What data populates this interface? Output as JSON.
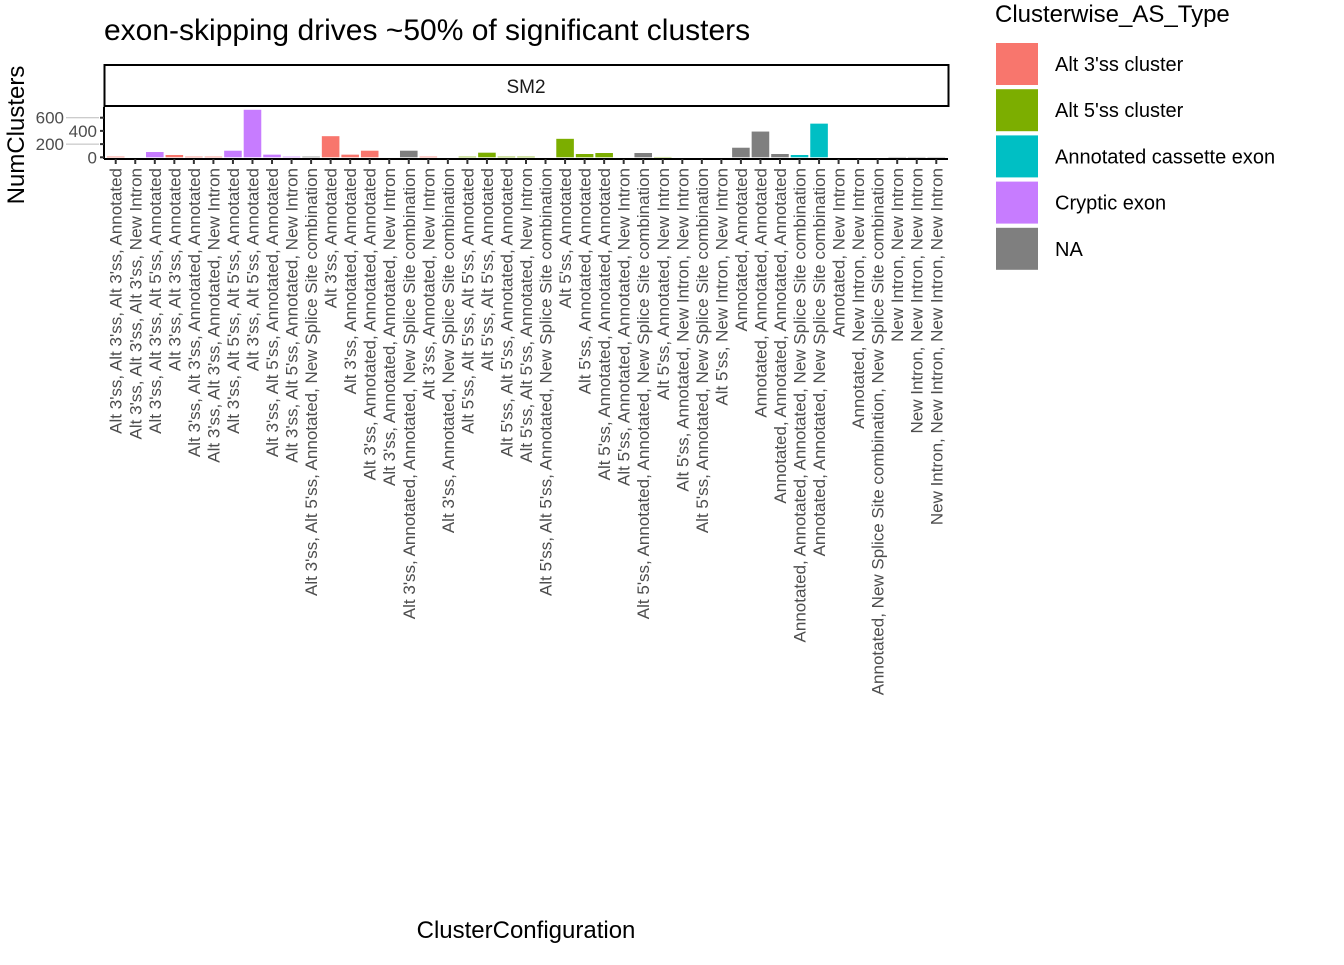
{
  "chart_data": {
    "type": "bar",
    "title": "exon-skipping drives ~50% of significant clusters",
    "facet": "SM2",
    "xlabel": "ClusterConfiguration",
    "ylabel": "NumClusters",
    "ylim": [
      0,
      760
    ],
    "yticks": [
      0,
      200,
      400,
      600
    ],
    "grid": false,
    "legend": {
      "title": "Clusterwise_AS_Type",
      "position": "right",
      "entries": [
        {
          "label": "Alt 3'ss cluster",
          "color": "#F8766D"
        },
        {
          "label": "Alt 5'ss cluster",
          "color": "#7CAE00"
        },
        {
          "label": "Annotated cassette exon",
          "color": "#00BFC4"
        },
        {
          "label": "Cryptic exon",
          "color": "#C77CFF"
        },
        {
          "label": "NA",
          "color": "#7F7F7F"
        }
      ]
    },
    "categories": [
      "Alt 3'ss, Alt 3'ss, Alt 3'ss, Annotated",
      "Alt 3'ss, Alt 3'ss, Alt 3'ss, New Intron",
      "Alt 3'ss, Alt 3'ss, Alt 5'ss, Annotated",
      "Alt 3'ss, Alt 3'ss, Annotated",
      "Alt 3'ss, Alt 3'ss, Annotated, Annotated",
      "Alt 3'ss, Alt 3'ss, Annotated, New Intron",
      "Alt 3'ss, Alt 5'ss, Alt 5'ss, Annotated",
      "Alt 3'ss, Alt 5'ss, Annotated",
      "Alt 3'ss, Alt 5'ss, Annotated, Annotated",
      "Alt 3'ss, Alt 5'ss, Annotated, New Intron",
      "Alt 3'ss, Alt 5'ss, Annotated, New Splice Site combination",
      "Alt 3'ss, Annotated",
      "Alt 3'ss, Annotated, Annotated",
      "Alt 3'ss, Annotated, Annotated, Annotated",
      "Alt 3'ss, Annotated, Annotated, New Intron",
      "Alt 3'ss, Annotated, Annotated, New Splice Site combination",
      "Alt 3'ss, Annotated, New Intron",
      "Alt 3'ss, Annotated, New Splice Site combination",
      "Alt 5'ss, Alt 5'ss, Alt 5'ss, Annotated",
      "Alt 5'ss, Alt 5'ss, Annotated",
      "Alt 5'ss, Alt 5'ss, Annotated, Annotated",
      "Alt 5'ss, Alt 5'ss, Annotated, New Intron",
      "Alt 5'ss, Alt 5'ss, Annotated, New Splice Site combination",
      "Alt 5'ss, Annotated",
      "Alt 5'ss, Annotated, Annotated",
      "Alt 5'ss, Annotated, Annotated, Annotated",
      "Alt 5'ss, Annotated, Annotated, New Intron",
      "Alt 5'ss, Annotated, Annotated, New Splice Site combination",
      "Alt 5'ss, Annotated, New Intron",
      "Alt 5'ss, Annotated, New Intron, New Intron",
      "Alt 5'ss, Annotated, New Splice Site combination",
      "Alt 5'ss, New Intron, New Intron",
      "Annotated, Annotated",
      "Annotated, Annotated, Annotated",
      "Annotated, Annotated, Annotated, Annotated",
      "Annotated, Annotated, Annotated, New Splice Site combination",
      "Annotated, Annotated, New Splice Site combination",
      "Annotated, New Intron",
      "Annotated, New Intron, New Intron",
      "Annotated, New Splice Site combination, New Splice Site combination",
      "New Intron, New Intron",
      "New Intron, New Intron, New Intron",
      "New Intron, New Intron, New Intron, New Intron"
    ],
    "values": [
      10,
      0,
      80,
      35,
      10,
      10,
      100,
      720,
      40,
      10,
      10,
      320,
      40,
      100,
      0,
      100,
      10,
      0,
      10,
      70,
      10,
      10,
      0,
      280,
      50,
      65,
      0,
      65,
      5,
      0,
      0,
      0,
      145,
      390,
      50,
      35,
      510,
      0,
      0,
      0,
      5,
      5,
      5
    ],
    "types": [
      "Alt 3'ss cluster",
      "NA",
      "Cryptic exon",
      "Alt 3'ss cluster",
      "Alt 3'ss cluster",
      "Alt 3'ss cluster",
      "Cryptic exon",
      "Cryptic exon",
      "Cryptic exon",
      "Cryptic exon",
      "NA",
      "Alt 3'ss cluster",
      "Alt 3'ss cluster",
      "Alt 3'ss cluster",
      "NA",
      "NA",
      "Alt 3'ss cluster",
      "NA",
      "Alt 5'ss cluster",
      "Alt 5'ss cluster",
      "Alt 5'ss cluster",
      "Alt 5'ss cluster",
      "NA",
      "Alt 5'ss cluster",
      "Alt 5'ss cluster",
      "Alt 5'ss cluster",
      "NA",
      "NA",
      "Alt 5'ss cluster",
      "NA",
      "NA",
      "NA",
      "NA",
      "NA",
      "NA",
      "Annotated cassette exon",
      "Annotated cassette exon",
      "NA",
      "NA",
      "NA",
      "NA",
      "NA",
      "NA"
    ]
  }
}
